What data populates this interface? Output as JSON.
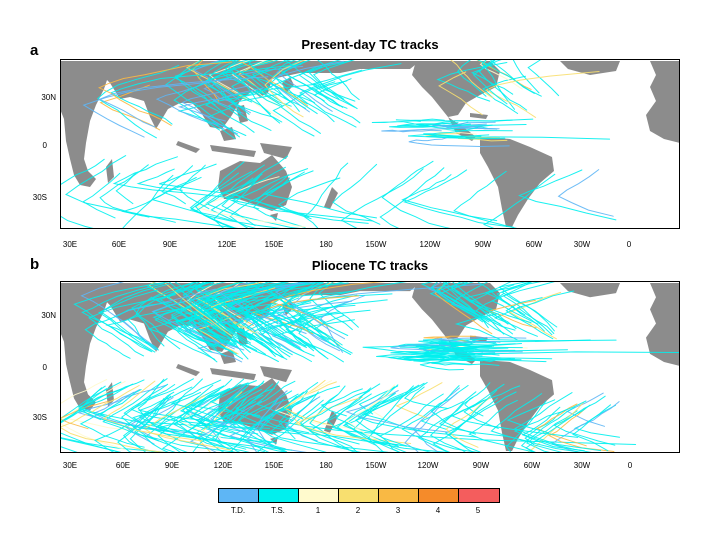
{
  "panels": [
    {
      "letter": "a",
      "title": "Present-day TC tracks",
      "lat_labels": [
        "30N",
        "0",
        "30S"
      ],
      "lon_labels": [
        "30E",
        "60E",
        "90E",
        "120E",
        "150E",
        "180",
        "150W",
        "120W",
        "90W",
        "60W",
        "30W",
        "0"
      ]
    },
    {
      "letter": "b",
      "title": "Pliocene TC tracks",
      "lat_labels": [
        "30N",
        "0",
        "30S"
      ],
      "lon_labels": [
        "30E",
        "60E",
        "90E",
        "120E",
        "150E",
        "180",
        "150W",
        "120W",
        "90W",
        "60W",
        "30W",
        "0"
      ]
    }
  ],
  "legend": {
    "categories": [
      {
        "label": "T.D.",
        "color": "#5eb6f5"
      },
      {
        "label": "T.S.",
        "color": "#00f0ee"
      },
      {
        "label": "1",
        "color": "#fffacd"
      },
      {
        "label": "2",
        "color": "#f8df6f"
      },
      {
        "label": "3",
        "color": "#f9b944"
      },
      {
        "label": "4",
        "color": "#f58b2a"
      },
      {
        "label": "5",
        "color": "#f45d5d"
      }
    ]
  },
  "colors": {
    "land": "#8c8c8c",
    "ocean": "#ffffff",
    "track": "#33e1e6"
  }
}
